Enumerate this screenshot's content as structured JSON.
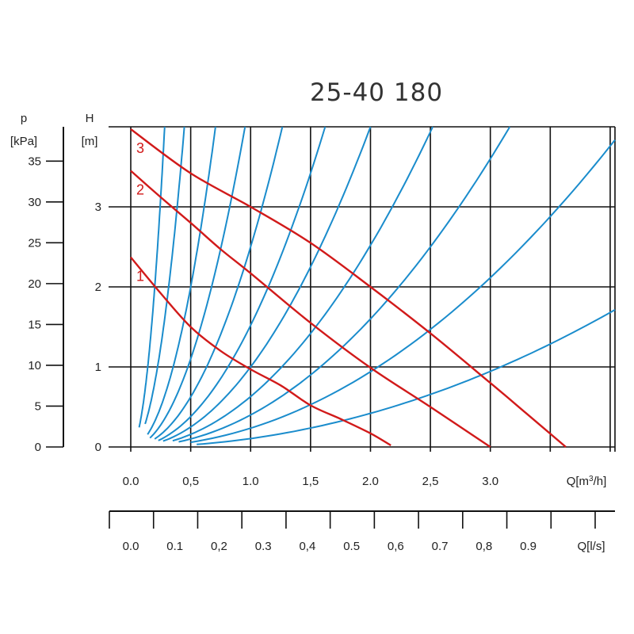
{
  "chart_data": {
    "type": "line",
    "title": "25-40 180",
    "y_left_outer": {
      "label": "p",
      "unit": "[kPa]",
      "ticks": [
        0,
        5,
        10,
        15,
        20,
        25,
        30,
        35
      ],
      "tick_labels": [
        "0",
        "5",
        "10",
        "15",
        "20",
        "25",
        "30",
        "35"
      ],
      "range": [
        0,
        39.2
      ]
    },
    "y_left": {
      "label": "H",
      "unit": "[m]",
      "ticks": [
        0,
        1,
        2,
        3
      ],
      "tick_labels": [
        "0",
        "1",
        "2",
        "3"
      ],
      "range": [
        0,
        4
      ]
    },
    "x_main": {
      "label": "Q[m³/h]",
      "ticks": [
        0,
        0.5,
        1,
        1.5,
        2,
        2.5,
        3,
        3.5,
        4
      ],
      "tick_labels": [
        "0.0",
        "0,5",
        "1.0",
        "1,5",
        "2.0",
        "2,5",
        "3.0",
        "",
        ""
      ],
      "range": [
        0,
        4.04
      ]
    },
    "x_secondary": {
      "label": "Q[l/s]",
      "ticks": [
        0,
        0.1,
        0.2,
        0.3,
        0.4,
        0.5,
        0.6,
        0.7,
        0.8,
        0.9,
        1.0,
        1.1
      ],
      "tick_labels": [
        "0.0",
        "0.1",
        "0,2",
        "0.3",
        "0,4",
        "0.5",
        "0,6",
        "0.7",
        "0,8",
        "0.9",
        "",
        ""
      ]
    },
    "grid": true,
    "pump_curves": [
      {
        "name": "1",
        "color": "#d11a1a",
        "points": [
          [
            0,
            2.37
          ],
          [
            0.25,
            1.92
          ],
          [
            0.5,
            1.5
          ],
          [
            0.75,
            1.2
          ],
          [
            1.0,
            0.97
          ],
          [
            1.25,
            0.77
          ],
          [
            1.5,
            0.52
          ],
          [
            1.75,
            0.35
          ],
          [
            2.0,
            0.17
          ],
          [
            2.17,
            0.02
          ]
        ]
      },
      {
        "name": "2",
        "color": "#d11a1a",
        "points": [
          [
            0,
            3.45
          ],
          [
            0.25,
            3.12
          ],
          [
            0.5,
            2.8
          ],
          [
            0.75,
            2.47
          ],
          [
            1.0,
            2.17
          ],
          [
            1.5,
            1.55
          ],
          [
            2.0,
            0.99
          ],
          [
            2.5,
            0.5
          ],
          [
            3.0,
            0.0
          ]
        ]
      },
      {
        "name": "3",
        "color": "#d11a1a",
        "points": [
          [
            0,
            3.97
          ],
          [
            0.5,
            3.42
          ],
          [
            1.0,
            3.0
          ],
          [
            1.5,
            2.55
          ],
          [
            2.0,
            2.0
          ],
          [
            2.5,
            1.42
          ],
          [
            3.0,
            0.8
          ],
          [
            3.3,
            0.42
          ],
          [
            3.63,
            0.0
          ]
        ]
      }
    ],
    "system_curves": {
      "color": "#1a8ccc",
      "k_values": [
        50,
        20,
        8,
        4.4,
        2.5,
        1.52,
        1.0,
        0.63,
        0.4,
        0.235,
        0.105
      ],
      "start_x": [
        0.07,
        0.12,
        0.14,
        0.16,
        0.2,
        0.23,
        0.27,
        0.35,
        0.4,
        0.5,
        0.55
      ]
    }
  }
}
